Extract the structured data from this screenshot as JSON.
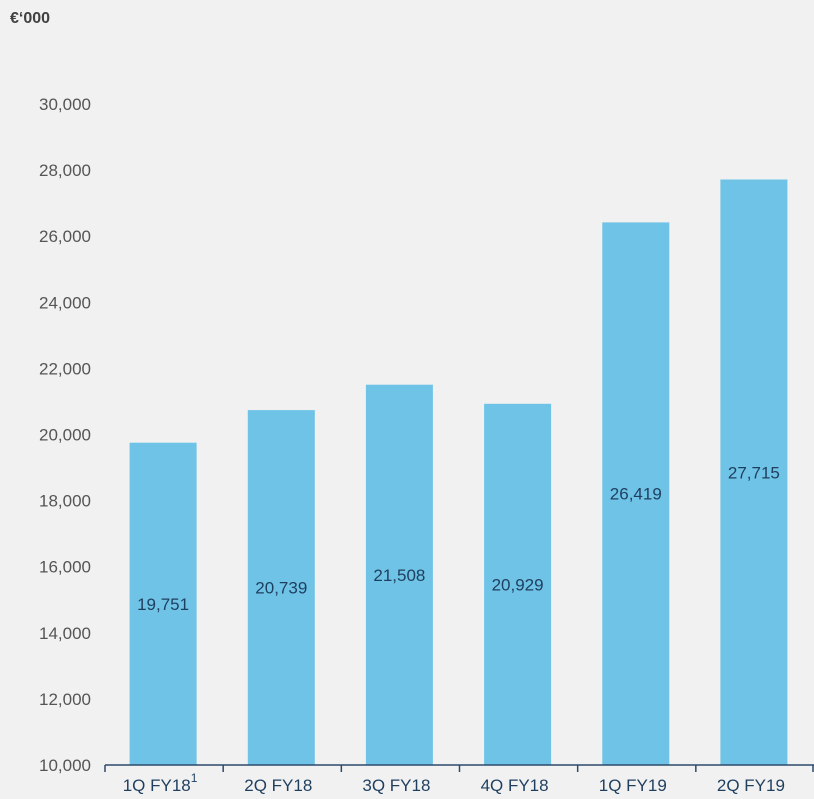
{
  "unit_label": "€‘000",
  "colors": {
    "bar": "#6ec3e6",
    "axis": "#2c4a6b",
    "background": "#f1f1f1"
  },
  "chart_data": {
    "type": "bar",
    "categories": [
      "1Q FY18",
      "2Q FY18",
      "3Q FY18",
      "4Q FY18",
      "1Q FY19",
      "2Q FY19"
    ],
    "category_superscripts": [
      "1",
      "",
      "",
      "",
      "",
      ""
    ],
    "values": [
      19751,
      20739,
      21508,
      20929,
      26419,
      27715
    ],
    "data_labels": [
      "19,751",
      "20,739",
      "21,508",
      "20,929",
      "26,419",
      "27,715"
    ],
    "ylim": [
      10000,
      30000
    ],
    "yticks": [
      10000,
      12000,
      14000,
      16000,
      18000,
      20000,
      22000,
      24000,
      26000,
      28000,
      30000
    ],
    "ytick_labels": [
      "10,000",
      "12,000",
      "14,000",
      "16,000",
      "18,000",
      "20,000",
      "22,000",
      "24,000",
      "26,000",
      "28,000",
      "30,000"
    ],
    "grid": false,
    "legend": "none"
  }
}
